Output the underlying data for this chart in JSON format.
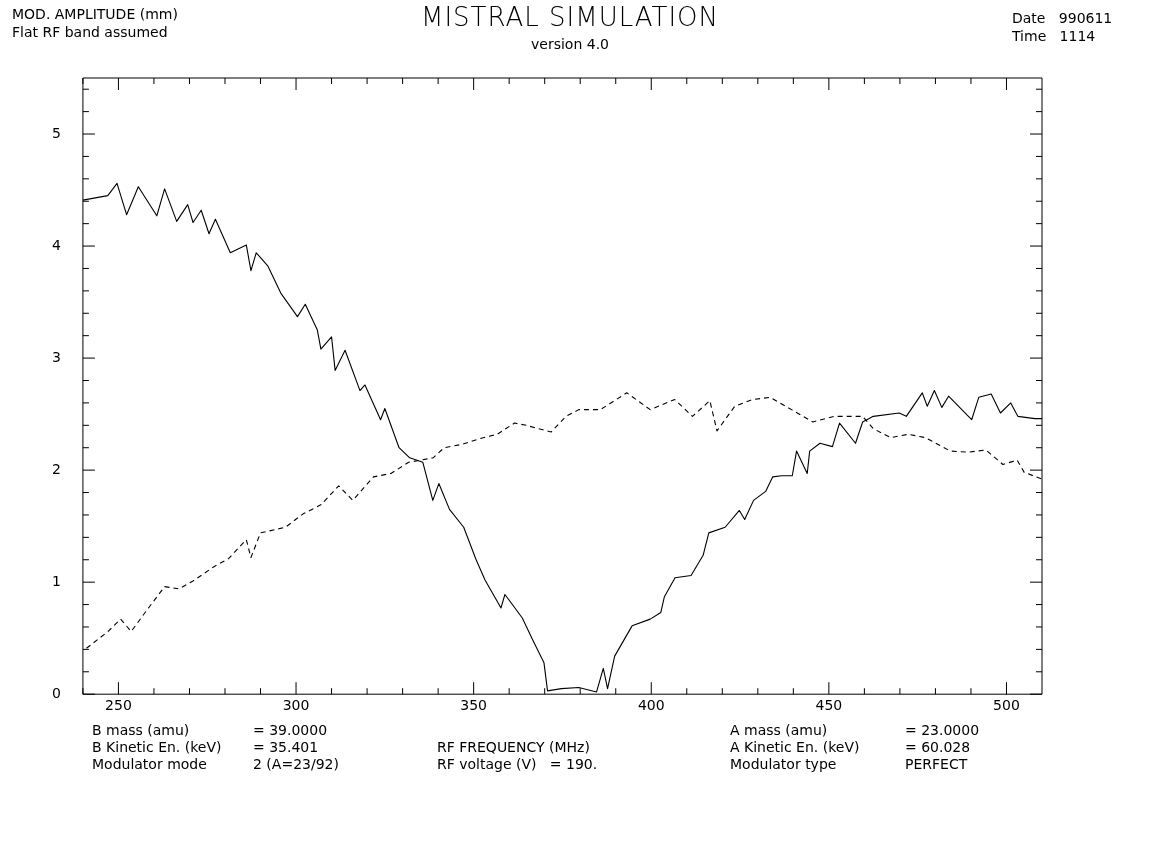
{
  "chart_data": {
    "type": "line",
    "title": "MISTRAL SIMULATION",
    "subtitle": "version 4.0",
    "ylabel": "MOD. AMPLITUDE (mm)",
    "xlabel": "RF FREQUENCY (MHz)",
    "annotations": [
      "Flat RF band assumed",
      "Date   990611",
      "Time   1114",
      "B mass (amu)",
      "= 39.0000",
      "B Kinetic En. (keV)",
      "= 35.401",
      "Modulator mode",
      "2 (A=23/92)",
      "RF voltage (V)   = 190.",
      "A mass (amu)",
      "= 23.0000",
      "A Kinetic En. (keV)",
      "= 60.028",
      "Modulator type",
      "PERFECT"
    ],
    "xlim": [
      240,
      510
    ],
    "ylim": [
      0,
      5.5
    ],
    "xticks": [
      {
        "value": 240,
        "label": null
      },
      250,
      {
        "value": 260,
        "label": null
      },
      {
        "value": 270,
        "label": null
      },
      {
        "value": 280,
        "label": null
      },
      {
        "value": 290,
        "label": null
      },
      300,
      {
        "value": 310,
        "label": null
      },
      {
        "value": 320,
        "label": null
      },
      {
        "value": 330,
        "label": null
      },
      {
        "value": 340,
        "label": null
      },
      350,
      {
        "value": 360,
        "label": null
      },
      {
        "value": 370,
        "label": null
      },
      {
        "value": 380,
        "label": null
      },
      {
        "value": 390,
        "label": null
      },
      400,
      {
        "value": 410,
        "label": null
      },
      {
        "value": 420,
        "label": null
      },
      {
        "value": 430,
        "label": null
      },
      {
        "value": 440,
        "label": null
      },
      450,
      {
        "value": 460,
        "label": null
      },
      {
        "value": 470,
        "label": null
      },
      {
        "value": 480,
        "label": null
      },
      {
        "value": 490,
        "label": null
      },
      500
    ],
    "yticks": [
      0,
      {
        "value": 0.2,
        "label": null
      },
      {
        "value": 0.4,
        "label": null
      },
      {
        "value": 0.6,
        "label": null
      },
      {
        "value": 0.8,
        "label": null
      },
      1,
      {
        "value": 1.2,
        "label": null
      },
      {
        "value": 1.4,
        "label": null
      },
      {
        "value": 1.6,
        "label": null
      },
      {
        "value": 1.8,
        "label": null
      },
      2,
      {
        "value": 2.2,
        "label": null
      },
      {
        "value": 2.4,
        "label": null
      },
      {
        "value": 2.6,
        "label": null
      },
      {
        "value": 2.8,
        "label": null
      },
      3,
      {
        "value": 3.2,
        "label": null
      },
      {
        "value": 3.4,
        "label": null
      },
      {
        "value": 3.6,
        "label": null
      },
      {
        "value": 3.8,
        "label": null
      },
      4,
      {
        "value": 4.2,
        "label": null
      },
      {
        "value": 4.4,
        "label": null
      },
      {
        "value": 4.6,
        "label": null
      },
      {
        "value": 4.8,
        "label": null
      },
      5,
      {
        "value": 5.2,
        "label": null
      },
      {
        "value": 5.4,
        "label": null
      }
    ],
    "grid": false,
    "legend": false,
    "marker": "none",
    "series": [
      {
        "color": "#000000",
        "line_style": "solid",
        "x": [
          240,
          247,
          249.6,
          252.3,
          255.6,
          260.8,
          263,
          266.4,
          269.5,
          271,
          273.3,
          275.5,
          277.3,
          281.5,
          286,
          287.3,
          288.8,
          292.1,
          295.7,
          300.4,
          302.6,
          306,
          307,
          310,
          311,
          313.8,
          318,
          319.4,
          323.8,
          325,
          329,
          332,
          335.7,
          338.5,
          340.2,
          343.2,
          347.2,
          350.7,
          353.2,
          357.7,
          358.8,
          363.7,
          366.7,
          369.8,
          370.8,
          374.7,
          379.6,
          384.6,
          386.5,
          387.7,
          389.7,
          394.6,
          399.7,
          402.7,
          403.7,
          406.7,
          411.2,
          414.6,
          416.2,
          420.8,
          424.8,
          426.3,
          428.8,
          432.2,
          434.2,
          436.7,
          439.7,
          440.9,
          443.9,
          444.6,
          447.5,
          451,
          453,
          457.5,
          459.5,
          462.5,
          469.8,
          471.8,
          476.3,
          477.7,
          479.7,
          481.8,
          483.7,
          490.2,
          492.2,
          495.7,
          498.3,
          501.2,
          503.2,
          508,
          510
        ],
        "values": [
          4.41,
          4.45,
          4.56,
          4.28,
          4.53,
          4.27,
          4.51,
          4.22,
          4.37,
          4.21,
          4.32,
          4.11,
          4.24,
          3.94,
          4.01,
          3.78,
          3.94,
          3.82,
          3.58,
          3.37,
          3.48,
          3.25,
          3.08,
          3.19,
          2.89,
          3.07,
          2.71,
          2.76,
          2.45,
          2.55,
          2.2,
          2.11,
          2.07,
          1.73,
          1.88,
          1.65,
          1.49,
          1.2,
          1.02,
          0.77,
          0.89,
          0.68,
          0.48,
          0.28,
          0.03,
          0.05,
          0.06,
          0.02,
          0.23,
          0.05,
          0.34,
          0.61,
          0.67,
          0.73,
          0.87,
          1.04,
          1.06,
          1.24,
          1.44,
          1.49,
          1.64,
          1.56,
          1.73,
          1.81,
          1.94,
          1.95,
          1.95,
          2.17,
          1.97,
          2.17,
          2.24,
          2.21,
          2.42,
          2.24,
          2.43,
          2.48,
          2.51,
          2.48,
          2.69,
          2.57,
          2.71,
          2.56,
          2.66,
          2.45,
          2.65,
          2.68,
          2.51,
          2.6,
          2.48,
          2.46,
          2.46
        ]
      },
      {
        "color": "#000000",
        "line_style": "dashed",
        "x": [
          241,
          247.1,
          250.6,
          253.6,
          258,
          263,
          267,
          271,
          277,
          281,
          286,
          287.3,
          290,
          297,
          302,
          307,
          312,
          316,
          321.8,
          326.7,
          331.7,
          338.6,
          341.7,
          346.7,
          351.6,
          356.6,
          361.5,
          364.8,
          371.8,
          376,
          379.6,
          385.7,
          393.1,
          399.7,
          406.6,
          411.6,
          416.5,
          418.5,
          423.5,
          428.5,
          433.5,
          439.5,
          445.5,
          451.5,
          459.5,
          462.5,
          467.4,
          472.4,
          477.2,
          484.2,
          489.2,
          494.2,
          499,
          503,
          505,
          510
        ],
        "values": [
          0.41,
          0.56,
          0.67,
          0.56,
          0.75,
          0.96,
          0.94,
          1.01,
          1.14,
          1.21,
          1.38,
          1.22,
          1.44,
          1.49,
          1.61,
          1.69,
          1.86,
          1.73,
          1.94,
          1.97,
          2.07,
          2.11,
          2.2,
          2.23,
          2.28,
          2.32,
          2.42,
          2.4,
          2.34,
          2.48,
          2.54,
          2.54,
          2.69,
          2.54,
          2.63,
          2.48,
          2.62,
          2.35,
          2.57,
          2.63,
          2.65,
          2.54,
          2.43,
          2.48,
          2.48,
          2.37,
          2.29,
          2.32,
          2.29,
          2.17,
          2.16,
          2.18,
          2.05,
          2.09,
          1.98,
          1.92
        ]
      }
    ]
  }
}
